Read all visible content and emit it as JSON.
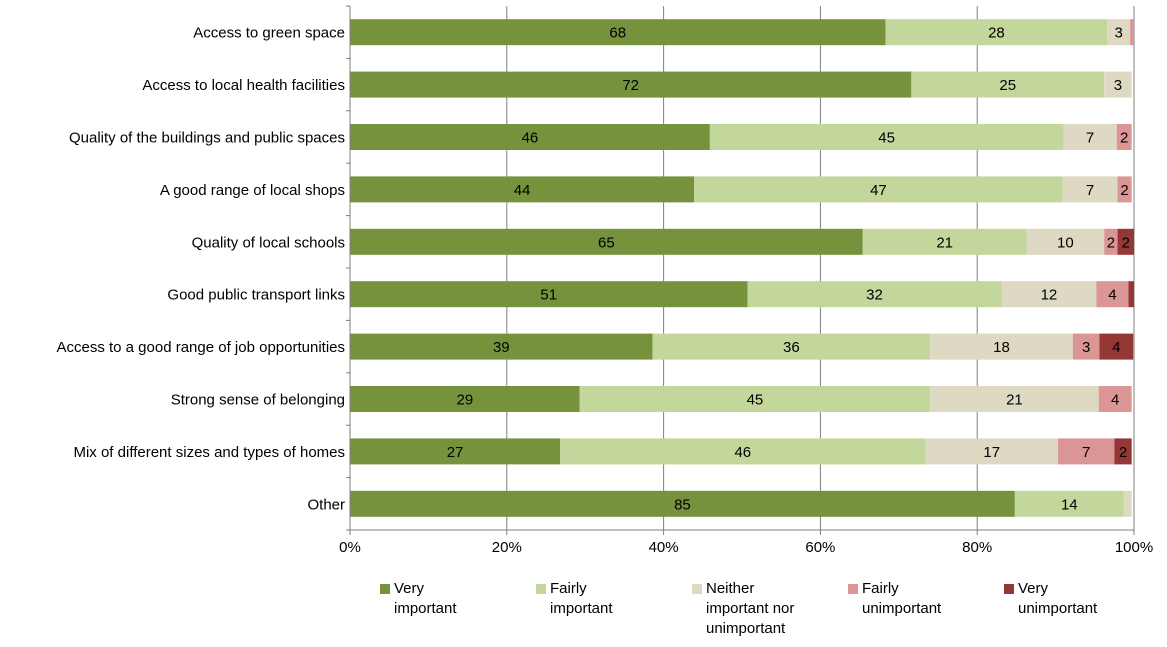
{
  "chart_data": {
    "type": "bar",
    "orientation": "horizontal",
    "stacked": true,
    "categories": [
      "Access to green space",
      "Access to local health facilities",
      "Quality of the buildings and public spaces",
      "A good range of local shops",
      "Quality of local schools",
      "Good public transport links",
      "Access to a good range of job opportunities",
      "Strong sense of belonging",
      "Mix of different sizes and types of homes",
      "Other"
    ],
    "series": [
      {
        "name": "Very important",
        "color": "#76923C",
        "values": [
          68.3,
          71.6,
          45.9,
          43.9,
          65.4,
          50.7,
          38.6,
          29.3,
          26.8,
          84.8
        ]
      },
      {
        "name": "Fairly important",
        "color": "#C3D69B",
        "values": [
          28.3,
          24.6,
          45.1,
          47.0,
          20.9,
          32.4,
          35.4,
          44.7,
          46.6,
          13.9
        ]
      },
      {
        "name": "Neither important nor unimportant",
        "color": "#DDD9C3",
        "values": [
          2.9,
          3.5,
          6.8,
          7.0,
          9.9,
          12.1,
          18.2,
          21.5,
          16.9,
          1.0
        ]
      },
      {
        "name": "Fairly unimportant",
        "color": "#D99694",
        "values": [
          0.5,
          0.0,
          1.9,
          1.8,
          1.7,
          4.1,
          3.4,
          4.2,
          7.2,
          0.0
        ]
      },
      {
        "name": "Very unimportant",
        "color": "#953735",
        "values": [
          0.0,
          0.0,
          0.0,
          0.0,
          2.1,
          0.7,
          4.3,
          0.0,
          2.2,
          0.0
        ]
      }
    ],
    "data_labels": [
      [
        "68",
        "28",
        "3",
        "",
        ""
      ],
      [
        "72",
        "25",
        "3",
        "",
        ""
      ],
      [
        "46",
        "45",
        "7",
        "2",
        ""
      ],
      [
        "44",
        "47",
        "7",
        "2",
        ""
      ],
      [
        "65",
        "21",
        "10",
        "2",
        "2"
      ],
      [
        "51",
        "32",
        "12",
        "4",
        ""
      ],
      [
        "39",
        "36",
        "18",
        "3",
        "4"
      ],
      [
        "29",
        "45",
        "21",
        "4",
        ""
      ],
      [
        "27",
        "46",
        "17",
        "7",
        "2"
      ],
      [
        "85",
        "14",
        "",
        "",
        ""
      ]
    ],
    "x_ticks": [
      "0%",
      "20%",
      "40%",
      "60%",
      "80%",
      "100%"
    ],
    "xlim": [
      0,
      100
    ],
    "grid": true,
    "legend": {
      "position": "bottom",
      "items": [
        {
          "lines": [
            "Very",
            "important"
          ]
        },
        {
          "lines": [
            "Fairly",
            "important"
          ]
        },
        {
          "lines": [
            "Neither",
            "important nor",
            "unimportant"
          ]
        },
        {
          "lines": [
            "Fairly",
            "unimportant"
          ]
        },
        {
          "lines": [
            "Very",
            "unimportant"
          ]
        }
      ]
    }
  }
}
